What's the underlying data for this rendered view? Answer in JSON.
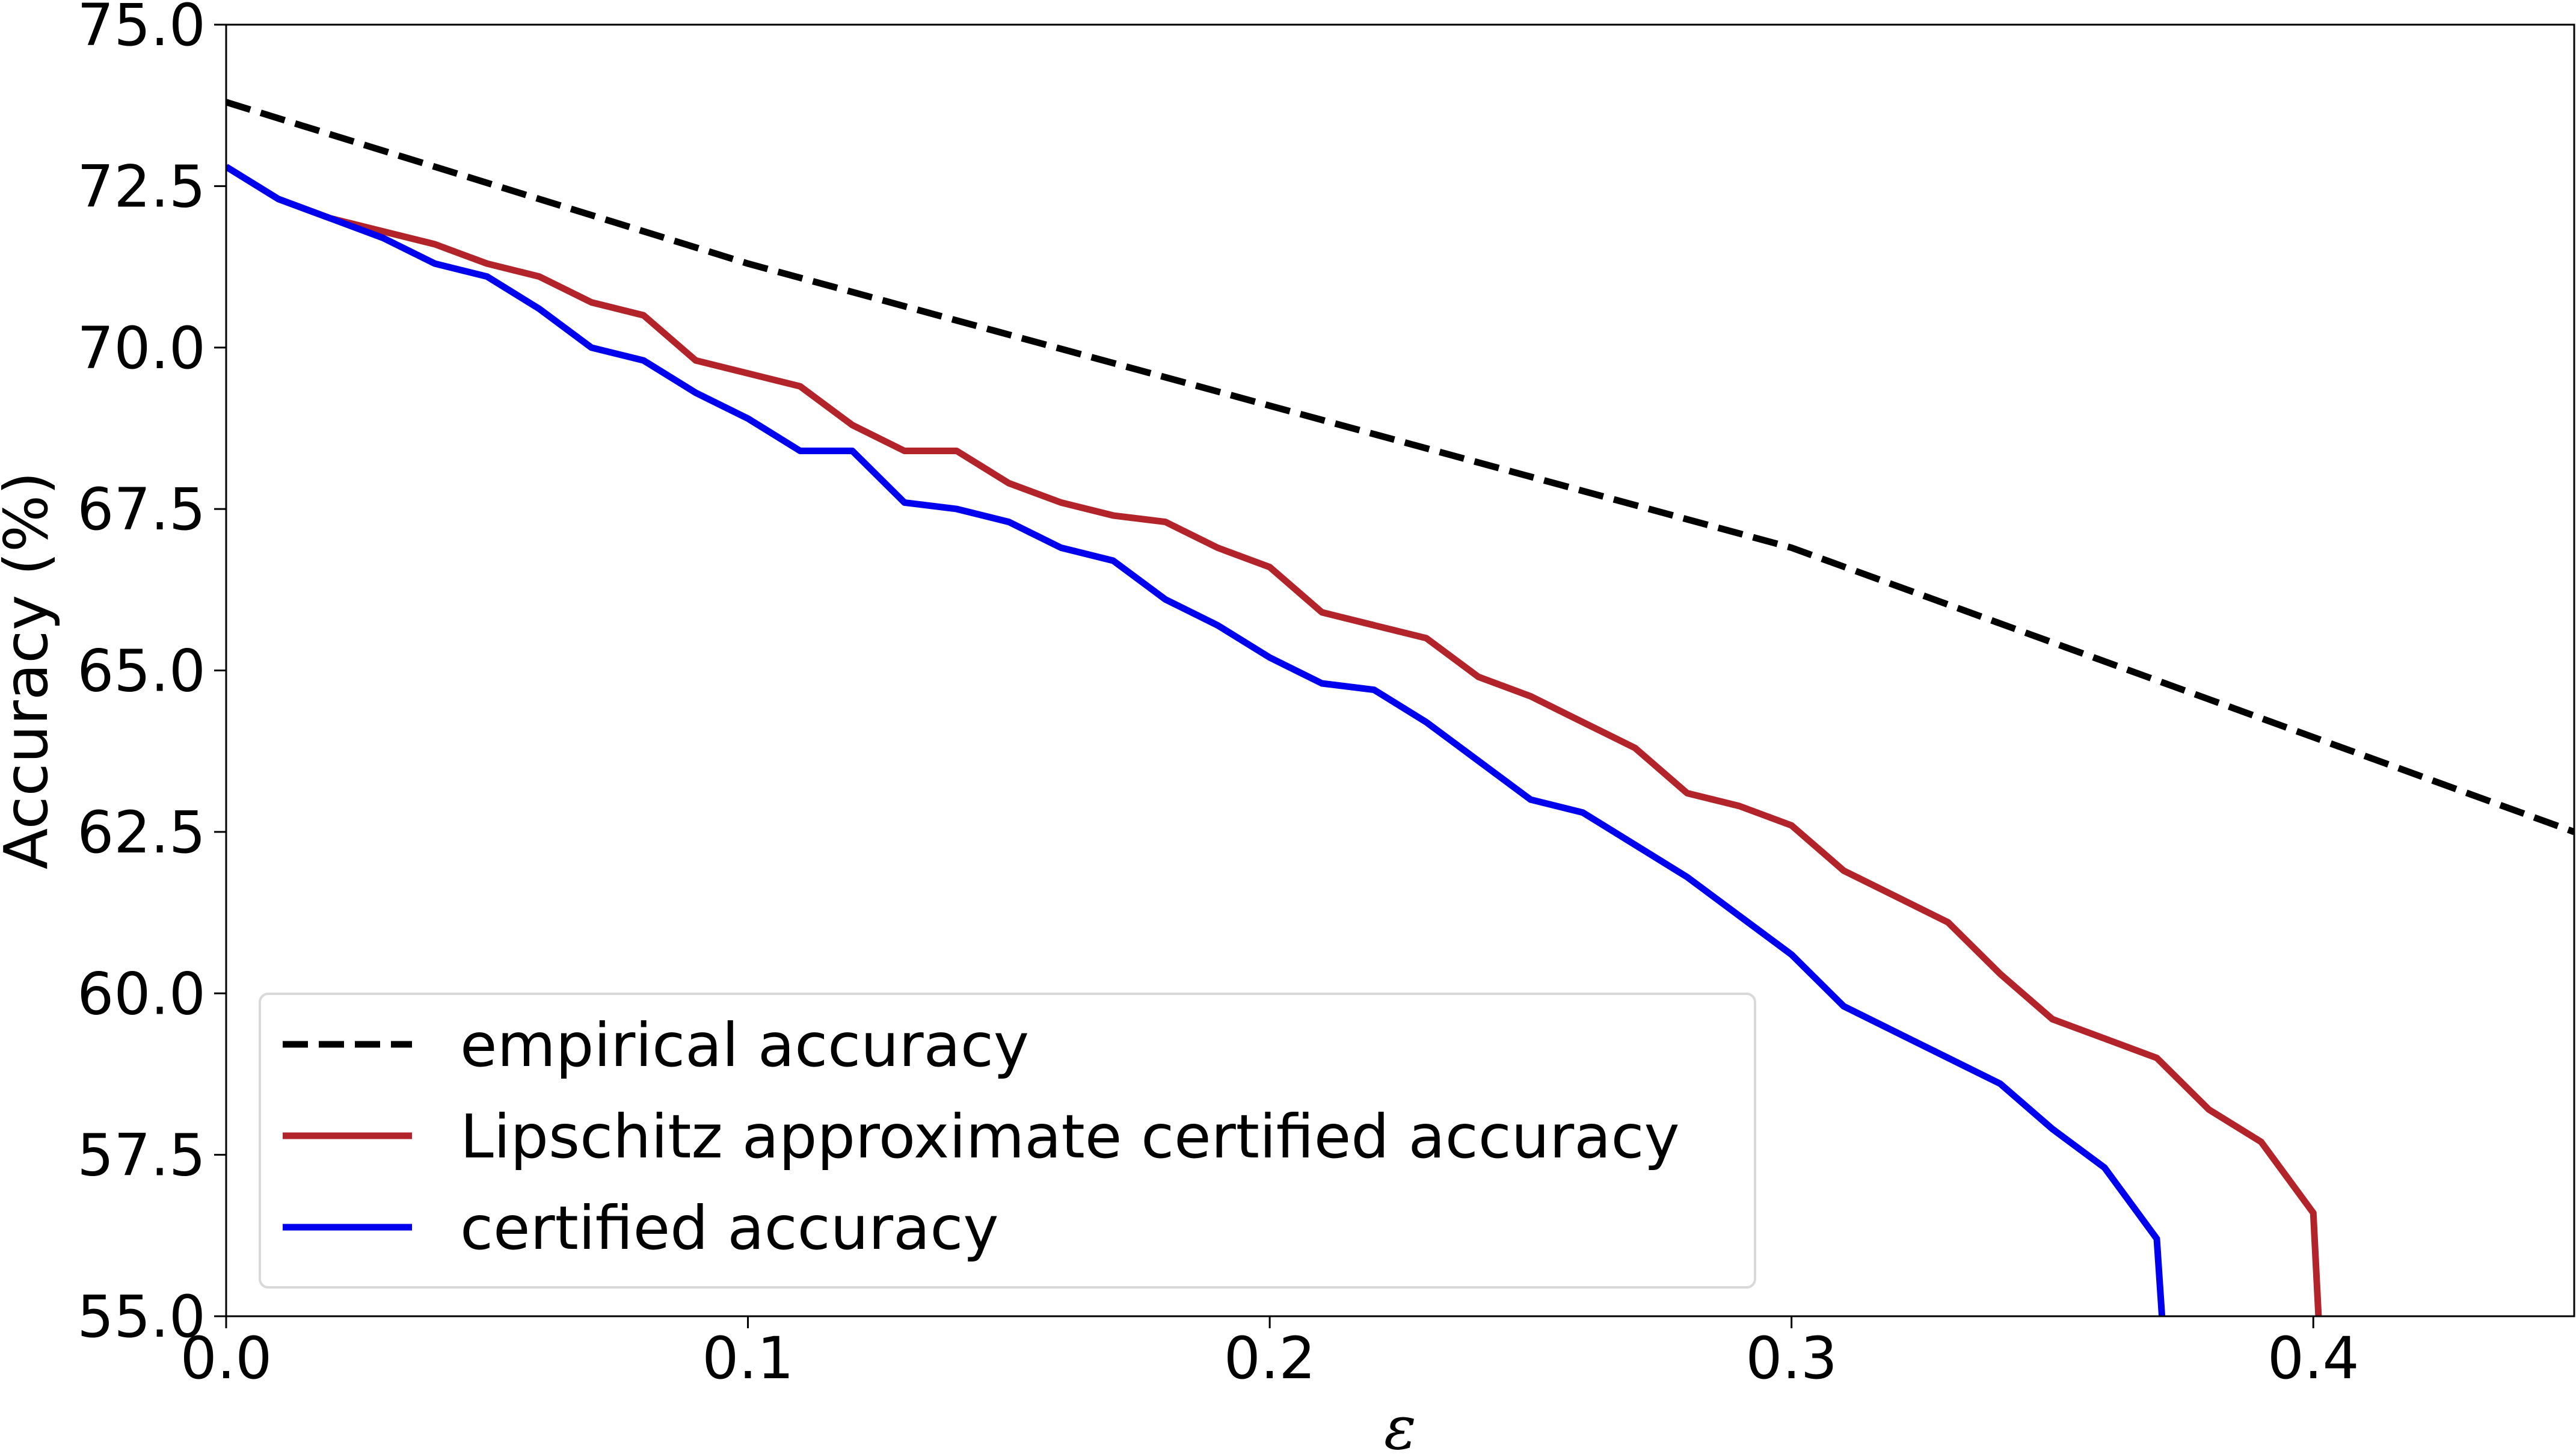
{
  "chart_data": {
    "type": "line",
    "title": "",
    "xlabel": "ε",
    "ylabel": "Accuracy (%)",
    "xlim": [
      0.0,
      0.45
    ],
    "ylim": [
      55.0,
      75.0
    ],
    "x_ticks": [
      0.0,
      0.1,
      0.2,
      0.3,
      0.4
    ],
    "x_tick_labels": [
      "0.0",
      "0.1",
      "0.2",
      "0.3",
      "0.4"
    ],
    "y_ticks": [
      55.0,
      57.5,
      60.0,
      62.5,
      65.0,
      67.5,
      70.0,
      72.5,
      75.0
    ],
    "y_tick_labels": [
      "55.0",
      "57.5",
      "60.0",
      "62.5",
      "65.0",
      "67.5",
      "70.0",
      "72.5",
      "75.0"
    ],
    "grid": false,
    "legend_position": "lower-left",
    "series": [
      {
        "name": "empirical accuracy",
        "color": "#000000",
        "style": "dashed",
        "x": [
          0.0,
          0.1,
          0.2,
          0.3,
          0.45
        ],
        "values": [
          73.8,
          71.3,
          69.1,
          66.9,
          62.5
        ]
      },
      {
        "name": "Lipschitz approximate certified accuracy",
        "color": "#b2232a",
        "style": "solid",
        "x": [
          0.0,
          0.01,
          0.02,
          0.03,
          0.04,
          0.05,
          0.06,
          0.07,
          0.08,
          0.09,
          0.1,
          0.11,
          0.12,
          0.13,
          0.14,
          0.15,
          0.16,
          0.17,
          0.18,
          0.19,
          0.2,
          0.21,
          0.22,
          0.23,
          0.24,
          0.25,
          0.26,
          0.27,
          0.28,
          0.29,
          0.3,
          0.31,
          0.32,
          0.33,
          0.34,
          0.35,
          0.36,
          0.37,
          0.38,
          0.39,
          0.4,
          0.401
        ],
        "values": [
          72.8,
          72.3,
          72.0,
          71.8,
          71.6,
          71.3,
          71.1,
          70.7,
          70.5,
          69.8,
          69.6,
          69.4,
          68.8,
          68.4,
          68.4,
          67.9,
          67.6,
          67.4,
          67.3,
          66.9,
          66.6,
          65.9,
          65.7,
          65.5,
          64.9,
          64.6,
          64.2,
          63.8,
          63.1,
          62.9,
          62.6,
          61.9,
          61.5,
          61.1,
          60.3,
          59.6,
          59.3,
          59.0,
          58.2,
          57.7,
          56.6,
          55.0
        ]
      },
      {
        "name": "certified accuracy",
        "color": "#0000ee",
        "style": "solid",
        "x": [
          0.0,
          0.01,
          0.02,
          0.03,
          0.04,
          0.05,
          0.06,
          0.07,
          0.08,
          0.09,
          0.1,
          0.11,
          0.12,
          0.13,
          0.14,
          0.15,
          0.16,
          0.17,
          0.18,
          0.19,
          0.2,
          0.21,
          0.22,
          0.23,
          0.24,
          0.25,
          0.26,
          0.27,
          0.28,
          0.29,
          0.3,
          0.31,
          0.32,
          0.33,
          0.34,
          0.35,
          0.36,
          0.37,
          0.371
        ],
        "values": [
          72.8,
          72.3,
          72.0,
          71.7,
          71.3,
          71.1,
          70.6,
          70.0,
          69.8,
          69.3,
          68.9,
          68.4,
          68.4,
          67.6,
          67.5,
          67.3,
          66.9,
          66.7,
          66.1,
          65.7,
          65.2,
          64.8,
          64.7,
          64.2,
          63.6,
          63.0,
          62.8,
          62.3,
          61.8,
          61.2,
          60.6,
          59.8,
          59.4,
          59.0,
          58.6,
          57.9,
          57.3,
          56.2,
          55.0
        ]
      }
    ]
  }
}
